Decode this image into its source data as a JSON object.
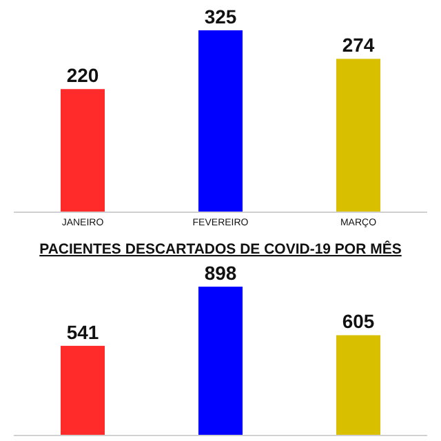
{
  "chart_data": [
    {
      "type": "bar",
      "categories": [
        "JANEIRO",
        "FEVEREIRO",
        "MARÇO"
      ],
      "values": [
        220,
        325,
        274
      ],
      "colors": [
        "#ff2a2a",
        "#0000ff",
        "#d8c000"
      ],
      "relative": false,
      "data_labels": true
    },
    {
      "type": "bar",
      "title": "PACIENTES DESCARTADOS DE COVID-19 POR MÊS",
      "categories": [
        null,
        null,
        null
      ],
      "values": [
        541,
        898,
        605
      ],
      "colors": [
        "#ff2a2a",
        "#0000ff",
        "#d8c000"
      ],
      "data_labels": true
    }
  ]
}
